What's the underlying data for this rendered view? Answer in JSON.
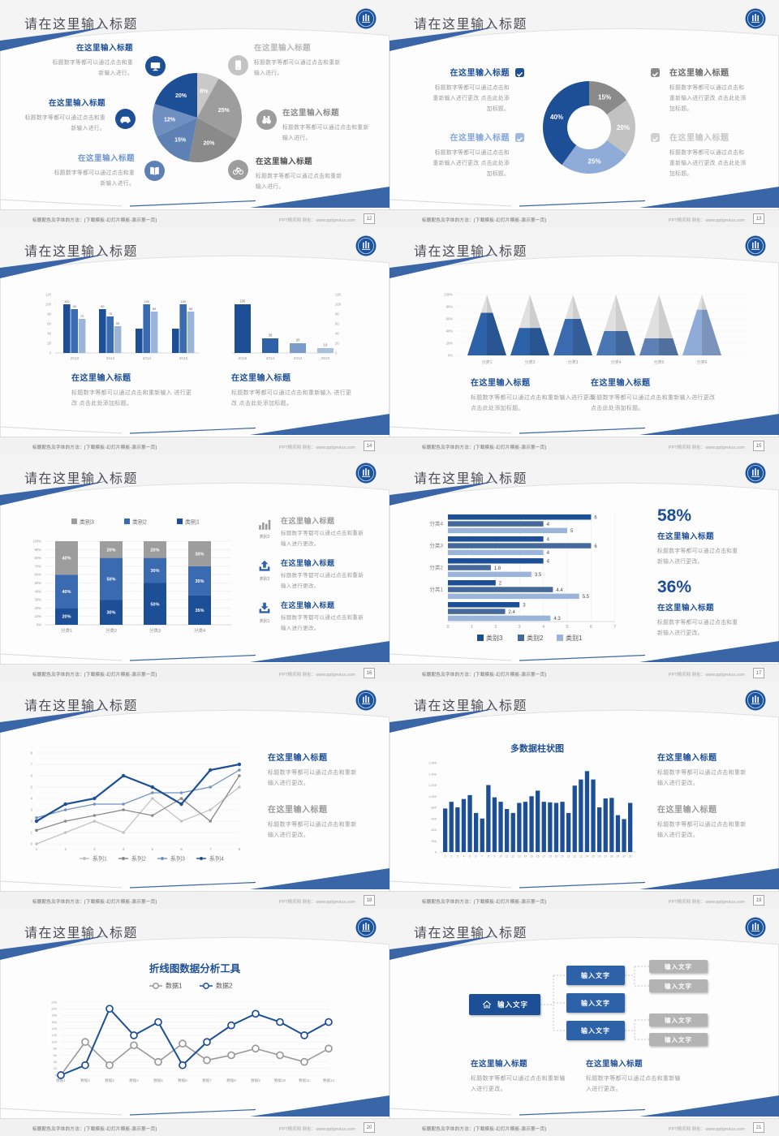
{
  "common": {
    "slide_title": "请在这里输入标题",
    "callout_title": "在这里输入标题"
  },
  "footer": {
    "left": "标题配色及字体的方法：[下载模板-幻灯片模板-演示第一页]",
    "right": "PPT精灵网 网址：www.pptgenius.com"
  },
  "colors": {
    "navy": "#1d4f97",
    "blue": "#3a6bb0",
    "steel": "#46699c",
    "light_blue": "#9ab5d9",
    "slate": "#5d81b5",
    "gray_dark": "#8a8a8a",
    "gray": "#9d9d9d",
    "gray_light": "#c6c6c6",
    "title_gray": "#4b4b54",
    "body_gray": "#9a9a9a"
  },
  "chart_data": [
    {
      "type": "pie",
      "values": [
        8,
        25,
        20,
        15,
        12,
        20
      ],
      "labels": [
        "8%",
        "25%",
        "20%",
        "15%",
        "12%",
        "20%"
      ],
      "colors": [
        "#c9c9c9",
        "#9d9d9d",
        "#8a8a8a",
        "#5d81b5",
        "#6f8fc0",
        "#1d4f97"
      ]
    },
    {
      "type": "pie",
      "donut": true,
      "values": [
        15,
        20,
        25,
        40
      ],
      "labels": [
        "15%",
        "20%",
        "25%",
        "40%"
      ],
      "colors": [
        "#8a8a8a",
        "#c2c2c2",
        "#8fabd7",
        "#1d4f97"
      ]
    },
    {
      "type": "bar",
      "categories": [
        "2010",
        "2012",
        "2014",
        "2016"
      ],
      "ymax": 120,
      "yticks": [
        0,
        20,
        40,
        60,
        80,
        100,
        120
      ],
      "colors": [
        "#1d4f97",
        "#3a6bb0",
        "#9ab5d9"
      ],
      "series": [
        {
          "name": "series1",
          "values": [
            100,
            90,
            50,
            50
          ],
          "labels": [
            "100",
            "90",
            null,
            null
          ]
        },
        {
          "name": "series2",
          "values": [
            90,
            75,
            100,
            100
          ],
          "labels": [
            "90",
            "75",
            "100",
            "100"
          ]
        },
        {
          "name": "series3",
          "values": [
            70,
            55,
            85,
            85
          ],
          "labels": [
            "70",
            "55",
            "85",
            "85"
          ]
        }
      ]
    },
    {
      "type": "bar",
      "categories": [
        "2016",
        "2014",
        "2012",
        "2010"
      ],
      "ymax": 120,
      "yticks": [
        0,
        20,
        40,
        60,
        80,
        100,
        120
      ],
      "values": [
        100,
        30,
        20,
        10
      ],
      "labels": [
        "100",
        "30",
        "20",
        "10"
      ],
      "colors": [
        "#1d4f97",
        "#2e62a8",
        "#7b9cc9",
        "#a9c0dd"
      ]
    },
    {
      "type": "pyramid",
      "categories": [
        "分类1",
        "分类2",
        "分类3",
        "分类4",
        "分类5",
        "分类6"
      ],
      "values_pct": [
        70,
        45,
        60,
        40,
        28,
        75
      ],
      "yticks": [
        "0%",
        "20%",
        "40%",
        "60%",
        "80%",
        "100%"
      ],
      "fill_colors": [
        "#2e62a8",
        "#2e62a8",
        "#3a6bb0",
        "#4a77b4",
        "#5d81b5",
        "#8fabd7"
      ],
      "empty_color": "#e0e0e0"
    },
    {
      "type": "stacked_bar",
      "categories": [
        "分类1",
        "分类2",
        "分类3",
        "分类4"
      ],
      "yticks": [
        "0%",
        "10%",
        "20%",
        "30%",
        "40%",
        "50%",
        "60%",
        "70%",
        "80%",
        "90%",
        "100%"
      ],
      "legend": [
        "类别3",
        "类别2",
        "类别1"
      ],
      "legend_colors": [
        "#9d9d9d",
        "#3a6bb0",
        "#1d4f97"
      ],
      "series": [
        {
          "name": "类别1",
          "color": "#1d4f97",
          "values": [
            20,
            30,
            50,
            35
          ]
        },
        {
          "name": "类别2",
          "color": "#3a6bb0",
          "values": [
            40,
            50,
            30,
            35
          ]
        },
        {
          "name": "类别3",
          "color": "#9d9d9d",
          "values": [
            40,
            20,
            20,
            30
          ]
        }
      ]
    },
    {
      "type": "hbar",
      "categories": [
        "分类4",
        "分类3",
        "分类2",
        "分类1",
        ""
      ],
      "xmax": 7,
      "xticks": [
        0,
        1,
        2,
        3,
        4,
        5,
        6,
        7
      ],
      "legend": [
        "类别3",
        "类别2",
        "类别1"
      ],
      "series": [
        {
          "name": "类别3",
          "color": "#1d4f97",
          "values": [
            6,
            4,
            4,
            2,
            3
          ]
        },
        {
          "name": "类别2",
          "color": "#46699c",
          "values": [
            4,
            6,
            1.8,
            4.4,
            2.4
          ]
        },
        {
          "name": "类别1",
          "color": "#9ab5d9",
          "values": [
            5,
            4,
            3.5,
            5.5,
            4.3
          ]
        }
      ]
    },
    {
      "type": "line",
      "x": [
        1,
        2,
        3,
        4,
        5,
        6,
        7,
        8
      ],
      "ymax": 8,
      "yticks": [
        0,
        1,
        2,
        3,
        4,
        5,
        6,
        7,
        8
      ],
      "series": [
        {
          "name": "系列1",
          "color": "#c3c3c3",
          "values": [
            0,
            1,
            2,
            1,
            4,
            2,
            3,
            5
          ]
        },
        {
          "name": "系列2",
          "color": "#8a8a8a",
          "values": [
            1.2,
            2,
            2.5,
            3,
            2.5,
            4,
            2,
            6
          ]
        },
        {
          "name": "系列3",
          "color": "#7193c2",
          "values": [
            2.3,
            3,
            3.5,
            3.5,
            4.5,
            4.5,
            5,
            6.5
          ]
        },
        {
          "name": "系列4",
          "color": "#1d4f97",
          "values": [
            2,
            3.5,
            4,
            6,
            5,
            3.5,
            6.5,
            7
          ]
        }
      ]
    },
    {
      "type": "bar",
      "title": "多数据柱状图",
      "color": "#1d4f97",
      "ymax": 1600,
      "yticks": [
        "0",
        "200",
        "400",
        "600",
        "800",
        "1,000",
        "1,200",
        "1,400",
        "1,600"
      ],
      "x_labels": [
        "1",
        "2",
        "3",
        "4",
        "5",
        "6",
        "7",
        "8",
        "9",
        "10",
        "11",
        "12",
        "13",
        "14",
        "15",
        "16",
        "17",
        "18",
        "19",
        "20",
        "21",
        "22",
        "23",
        "24",
        "25",
        "26",
        "27",
        "28",
        "29",
        "30",
        "31"
      ],
      "values": [
        780,
        900,
        800,
        950,
        1020,
        700,
        600,
        1200,
        980,
        900,
        770,
        700,
        880,
        900,
        1000,
        1100,
        900,
        890,
        880,
        900,
        700,
        1190,
        1300,
        1450,
        1300,
        800,
        960,
        970,
        660,
        590,
        880
      ]
    },
    {
      "type": "line",
      "title": "折线图数据分析工具",
      "x_labels": [
        "数据1",
        "数据2",
        "数据3",
        "数据4",
        "数据5",
        "数据6",
        "数据7",
        "数据8",
        "数据9",
        "数据10",
        "数据11",
        "数据12"
      ],
      "ymax": 220,
      "yticks": [
        0,
        20,
        40,
        60,
        80,
        100,
        120,
        140,
        160,
        180,
        200,
        220
      ],
      "series": [
        {
          "name": "数据1",
          "color": "#9a9a9a",
          "values": [
            0,
            100,
            30,
            90,
            40,
            95,
            45,
            60,
            80,
            60,
            40,
            80
          ]
        },
        {
          "name": "数据2",
          "color": "#1d4f97",
          "values": [
            0,
            30,
            200,
            120,
            160,
            30,
            100,
            150,
            185,
            160,
            120,
            160
          ]
        }
      ]
    }
  ],
  "slides": [
    {
      "page": "12",
      "type": "pie_callouts",
      "chart": 0,
      "left": [
        {
          "icon": "monitor-icon",
          "icon_color": "#1d4f97",
          "title_color": "#1d4f97",
          "body": "标题数字等都可以通过点击和重新输入进行。"
        },
        {
          "icon": "car-icon",
          "icon_color": "#1d4f97",
          "title_color": "#1d4f97",
          "body": "标题数字等都可以通过点击和重新输入进行。"
        },
        {
          "icon": "book-icon",
          "icon_color": "#5d81b5",
          "title_color": "#6f97cc",
          "body": "标题数字等都可以通过点击和重新输入进行。"
        }
      ],
      "right": [
        {
          "icon": "phone-icon",
          "icon_color": "#c4c4c4",
          "title_color": "#b8b8b8",
          "body": "标题数字等都可以通过点击和重新输入进行。"
        },
        {
          "icon": "binoculars-icon",
          "icon_color": "#9d9d9d",
          "title_color": "#8a8a8a",
          "body": "标题数字等都可以通过点击和重新输入进行。"
        },
        {
          "icon": "bike-icon",
          "icon_color": "#9d9d9d",
          "title_color": "#4f4f4f",
          "body": "标题数字等都可以通过点击和重新输入进行。"
        }
      ]
    },
    {
      "page": "13",
      "type": "donut_callouts",
      "chart": 1,
      "left": [
        {
          "check_color": "#1d4f97",
          "title_color": "#1d4f97",
          "body": "标题数字等都可以通过点击和重新输入进行更改 点击此处添加标题。"
        },
        {
          "check_color": "#9fb9dd",
          "title_color": "#84a7d6",
          "body": "标题数字等都可以通过点击和重新输入进行更改 点击此处添加标题。"
        }
      ],
      "right": [
        {
          "check_color": "#8a8a8a",
          "title_color": "#6b6b6b",
          "body": "标题数字等都可以通过点击和重新输入进行更改 点击此处添加标题。"
        },
        {
          "check_color": "#cfcfcf",
          "title_color": "#c6c6c6",
          "body": "标题数字等都可以通过点击和重新输入进行更改 点击此处添加标题。"
        }
      ]
    },
    {
      "page": "14",
      "type": "dual_bars",
      "charts": [
        2,
        3
      ],
      "callouts": [
        {
          "title_color": "#1d4f97",
          "body": "标题数字等都可以通过点击和重新输入 进行更改 点击此处添加标题。"
        },
        {
          "title_color": "#1d4f97",
          "body": "标题数字等都可以通过点击和重新输入 进行更改 点击此处添加标题。"
        }
      ]
    },
    {
      "page": "15",
      "type": "pyramids",
      "chart": 4,
      "callouts": [
        {
          "title_color": "#1d4f97",
          "body": "标题数字等都可以通过点击和重新输入进行更改 点击此处添加标题。"
        },
        {
          "title_color": "#1d4f97",
          "body": "标题数字等都可以通过点击和重新输入进行更改 点击此处添加标题。"
        }
      ]
    },
    {
      "page": "16",
      "type": "stacked",
      "chart": 5,
      "callouts": [
        {
          "icon": "bar-chart-icon",
          "icon_color": "#9a9a9a",
          "label": "类别3",
          "title_color": "#9a9a9a",
          "body": "标题数字等都可以通过点击和重新输入进行更改。"
        },
        {
          "icon": "upload-icon",
          "icon_color": "#2e62a8",
          "label": "类别2",
          "title_color": "#1d4f97",
          "body": "标题数字等都可以通过点击和重新输入进行更改。"
        },
        {
          "icon": "download-icon",
          "icon_color": "#2e62a8",
          "label": "类别1",
          "title_color": "#1d4f97",
          "body": "标题数字等都可以通过点击和重新输入进行更改。"
        }
      ]
    },
    {
      "page": "17",
      "type": "hbars",
      "chart": 6,
      "stats": [
        {
          "value": "58%",
          "title_color": "#1d4f97",
          "body": "标题数字等都可以通过点击和重新输入进行更改。"
        },
        {
          "value": "36%",
          "title_color": "#1d4f97",
          "body": "标题数字等都可以通过点击和重新输入进行更改。"
        }
      ]
    },
    {
      "page": "18",
      "type": "lines4",
      "chart": 7,
      "callouts": [
        {
          "title_color": "#1d4f97",
          "body": "标题数字等都可以通过点击和重新输入进行更改。"
        },
        {
          "title_color": "#9a9a9a",
          "body": "标题数字等都可以通过点击和重新输入进行更改。"
        }
      ]
    },
    {
      "page": "19",
      "type": "columns",
      "chart": 8,
      "callouts": [
        {
          "title_color": "#1d4f97",
          "body": "标题数字等都可以通过点击和重新输入进行更改。"
        },
        {
          "title_color": "#9a9a9a",
          "body": "标题数字等都可以通过点击和重新输入进行更改。"
        }
      ]
    },
    {
      "page": "20",
      "type": "lines2",
      "chart": 9
    },
    {
      "page": "21",
      "type": "diagram",
      "nodes": {
        "root": "输入文字",
        "mid": [
          "输入文字",
          "输入文字",
          "输入文字"
        ],
        "leaf": [
          "输入文字",
          "输入文字",
          "输入文字",
          "输入文字"
        ]
      },
      "callouts": [
        {
          "title_color": "#1d4f97",
          "body": "标题数字等都可以通过点击和重新输入进行更改。"
        },
        {
          "title_color": "#1d4f97",
          "body": "标题数字等都可以通过点击和重新输入进行更改。"
        }
      ]
    }
  ]
}
